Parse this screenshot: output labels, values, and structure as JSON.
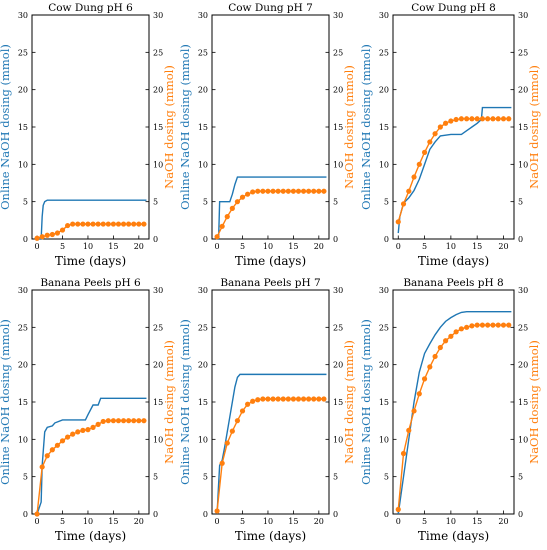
{
  "figure": {
    "colors": {
      "online": "#1f77b4",
      "manual": "#ff7f0e",
      "axis": "#000000"
    }
  },
  "chart_data": [
    {
      "type": "line",
      "title": "Cow Dung pH 6",
      "xlabel": "Time (days)",
      "ylabel_left": "Online NaOH dosing (mmol)",
      "ylabel_right": "NaOH dosing (mmol)",
      "xlim": [
        -1,
        22
      ],
      "ylim": [
        0,
        30
      ],
      "xticks": [
        0,
        5,
        10,
        15,
        20
      ],
      "yticks": [
        0,
        5,
        10,
        15,
        20,
        25,
        30
      ],
      "grid": false,
      "series": [
        {
          "axis": "left",
          "style": "step-line",
          "x": [
            0,
            0.8,
            1.0,
            1.2,
            1.5,
            2.0,
            21.5
          ],
          "y": [
            0,
            0,
            3.0,
            4.5,
            5.0,
            5.2,
            5.2
          ]
        },
        {
          "axis": "right",
          "style": "line-marker",
          "x": [
            0,
            1,
            2,
            3,
            4,
            5,
            6,
            7,
            8,
            9,
            10,
            11,
            12,
            13,
            14,
            15,
            16,
            17,
            18,
            19,
            20,
            21
          ],
          "y": [
            0.1,
            0.3,
            0.5,
            0.6,
            0.8,
            1.2,
            1.8,
            2.0,
            2.0,
            2.0,
            2.0,
            2.0,
            2.0,
            2.0,
            2.0,
            2.0,
            2.0,
            2.0,
            2.0,
            2.0,
            2.0,
            2.0
          ]
        }
      ]
    },
    {
      "type": "line",
      "title": "Cow Dung pH 7",
      "xlabel": "Time (days)",
      "ylabel_left": "Online NaOH dosing (mmol)",
      "ylabel_right": "NaOH dosing (mmol)",
      "xlim": [
        -1,
        22
      ],
      "ylim": [
        0,
        30
      ],
      "xticks": [
        0,
        5,
        10,
        15,
        20
      ],
      "yticks": [
        0,
        5,
        10,
        15,
        20,
        25,
        30
      ],
      "grid": false,
      "series": [
        {
          "axis": "left",
          "style": "step-line",
          "x": [
            0,
            0.3,
            0.5,
            2.5,
            3.0,
            3.5,
            4.0,
            21.5
          ],
          "y": [
            0,
            0,
            5.0,
            5.0,
            6.0,
            7.3,
            8.3,
            8.3
          ]
        },
        {
          "axis": "right",
          "style": "line-marker",
          "x": [
            0,
            1,
            2,
            3,
            4,
            5,
            6,
            7,
            8,
            9,
            10,
            11,
            12,
            13,
            14,
            15,
            16,
            17,
            18,
            19,
            20,
            21
          ],
          "y": [
            0.3,
            1.7,
            3.0,
            4.1,
            5.0,
            5.6,
            6.0,
            6.3,
            6.4,
            6.4,
            6.4,
            6.4,
            6.4,
            6.4,
            6.4,
            6.4,
            6.4,
            6.4,
            6.4,
            6.4,
            6.4,
            6.4
          ]
        }
      ]
    },
    {
      "type": "line",
      "title": "Cow Dung pH 8",
      "xlabel": "Time (days)",
      "ylabel_left": "Online NaOH dosing (mmol)",
      "ylabel_right": "NaOH dosing (mmol)",
      "xlim": [
        -1,
        22
      ],
      "ylim": [
        0,
        30
      ],
      "xticks": [
        0,
        5,
        10,
        15,
        20
      ],
      "yticks": [
        0,
        5,
        10,
        15,
        20,
        25,
        30
      ],
      "grid": false,
      "series": [
        {
          "axis": "left",
          "style": "step-line",
          "x": [
            0,
            0.3,
            1,
            2,
            3,
            4,
            5,
            6,
            7,
            8,
            10,
            12,
            13,
            14,
            15,
            15.8,
            16.0,
            21.5
          ],
          "y": [
            0.8,
            3.0,
            4.8,
            5.5,
            6.5,
            8.0,
            10.0,
            12.0,
            13.0,
            13.8,
            14.0,
            14.0,
            14.5,
            15.0,
            15.5,
            16.0,
            17.6,
            17.6
          ]
        },
        {
          "axis": "right",
          "style": "line-marker",
          "x": [
            0,
            1,
            2,
            3,
            4,
            5,
            6,
            7,
            8,
            9,
            10,
            11,
            12,
            13,
            14,
            15,
            16,
            17,
            18,
            19,
            20,
            21
          ],
          "y": [
            2.3,
            4.7,
            6.4,
            8.3,
            10.0,
            11.6,
            13.0,
            14.1,
            15.0,
            15.5,
            15.8,
            16.0,
            16.1,
            16.1,
            16.1,
            16.1,
            16.1,
            16.1,
            16.1,
            16.1,
            16.1,
            16.1
          ]
        }
      ]
    },
    {
      "type": "line",
      "title": "Banana Peels pH 6",
      "xlabel": "Time (days)",
      "ylabel_left": "Online NaOH dosing (mmol)",
      "ylabel_right": "NaOH dosing (mmol)",
      "xlim": [
        -1,
        22
      ],
      "ylim": [
        0,
        30
      ],
      "xticks": [
        0,
        5,
        10,
        15,
        20
      ],
      "yticks": [
        0,
        5,
        10,
        15,
        20,
        25,
        30
      ],
      "grid": false,
      "series": [
        {
          "axis": "left",
          "style": "step-line",
          "x": [
            0,
            0.5,
            0.8,
            1.0,
            1.5,
            2.0,
            3.0,
            3.5,
            5.0,
            6.0,
            9.5,
            10.0,
            11.0,
            12.0,
            12.5,
            21.5
          ],
          "y": [
            0,
            1.0,
            1.6,
            6.5,
            11.0,
            11.6,
            11.8,
            12.2,
            12.6,
            12.6,
            12.6,
            13.3,
            14.6,
            14.6,
            15.5,
            15.5
          ]
        },
        {
          "axis": "right",
          "style": "line-marker",
          "x": [
            0,
            1,
            2,
            3,
            4,
            5,
            6,
            7,
            8,
            9,
            10,
            11,
            12,
            13,
            14,
            15,
            16,
            17,
            18,
            19,
            20,
            21
          ],
          "y": [
            0,
            6.3,
            7.8,
            8.6,
            9.2,
            9.8,
            10.3,
            10.7,
            11.0,
            11.2,
            11.3,
            11.6,
            12.0,
            12.4,
            12.5,
            12.5,
            12.5,
            12.5,
            12.5,
            12.5,
            12.5,
            12.5
          ]
        }
      ]
    },
    {
      "type": "line",
      "title": "Banana Peels pH 7",
      "xlabel": "Time (days)",
      "ylabel_left": "Online NaOH dosing (mmol)",
      "ylabel_right": "NaOH dosing (mmol)",
      "xlim": [
        -1,
        22
      ],
      "ylim": [
        0,
        30
      ],
      "xticks": [
        0,
        5,
        10,
        15,
        20
      ],
      "yticks": [
        0,
        5,
        10,
        15,
        20,
        25,
        30
      ],
      "grid": false,
      "series": [
        {
          "axis": "left",
          "style": "step-line",
          "x": [
            0,
            0.3,
            0.5,
            1.0,
            1.5,
            2.0,
            2.5,
            3.0,
            3.5,
            4.0,
            4.5,
            21.5
          ],
          "y": [
            0,
            4.0,
            6.5,
            7.2,
            9.0,
            11.0,
            13.0,
            15.0,
            17.0,
            18.3,
            18.7,
            18.7
          ]
        },
        {
          "axis": "right",
          "style": "line-marker",
          "x": [
            0,
            1,
            2,
            3,
            4,
            5,
            6,
            7,
            8,
            9,
            10,
            11,
            12,
            13,
            14,
            15,
            16,
            17,
            18,
            19,
            20,
            21
          ],
          "y": [
            0.4,
            6.8,
            9.5,
            11.1,
            12.5,
            13.8,
            14.7,
            15.1,
            15.3,
            15.4,
            15.4,
            15.4,
            15.4,
            15.4,
            15.4,
            15.4,
            15.4,
            15.4,
            15.4,
            15.4,
            15.4,
            15.4
          ]
        }
      ]
    },
    {
      "type": "line",
      "title": "Banana Peels pH 8",
      "xlabel": "Time (days)",
      "ylabel_left": "Online NaOH dosing (mmol)",
      "ylabel_right": "NaOH dosing (mmol)",
      "xlim": [
        -1,
        22
      ],
      "ylim": [
        0,
        30
      ],
      "xticks": [
        0,
        5,
        10,
        15,
        20
      ],
      "yticks": [
        0,
        5,
        10,
        15,
        20,
        25,
        30
      ],
      "grid": false,
      "series": [
        {
          "axis": "left",
          "style": "step-line",
          "x": [
            0,
            1,
            2,
            3,
            4,
            5,
            6,
            7,
            8,
            9,
            10,
            11,
            12,
            13,
            14,
            21.5
          ],
          "y": [
            0,
            5.0,
            10.0,
            15.0,
            19.0,
            21.5,
            22.8,
            24.0,
            25.0,
            25.8,
            26.3,
            26.7,
            27.0,
            27.1,
            27.1,
            27.1
          ]
        },
        {
          "axis": "right",
          "style": "line-marker",
          "x": [
            0,
            1,
            2,
            3,
            4,
            5,
            6,
            7,
            8,
            9,
            10,
            11,
            12,
            13,
            14,
            15,
            16,
            17,
            18,
            19,
            20,
            21
          ],
          "y": [
            0.6,
            8.1,
            11.2,
            13.8,
            16.1,
            18.1,
            19.7,
            21.1,
            22.3,
            23.2,
            23.8,
            24.4,
            24.8,
            25.0,
            25.2,
            25.3,
            25.3,
            25.3,
            25.3,
            25.3,
            25.3,
            25.3
          ]
        }
      ]
    }
  ]
}
